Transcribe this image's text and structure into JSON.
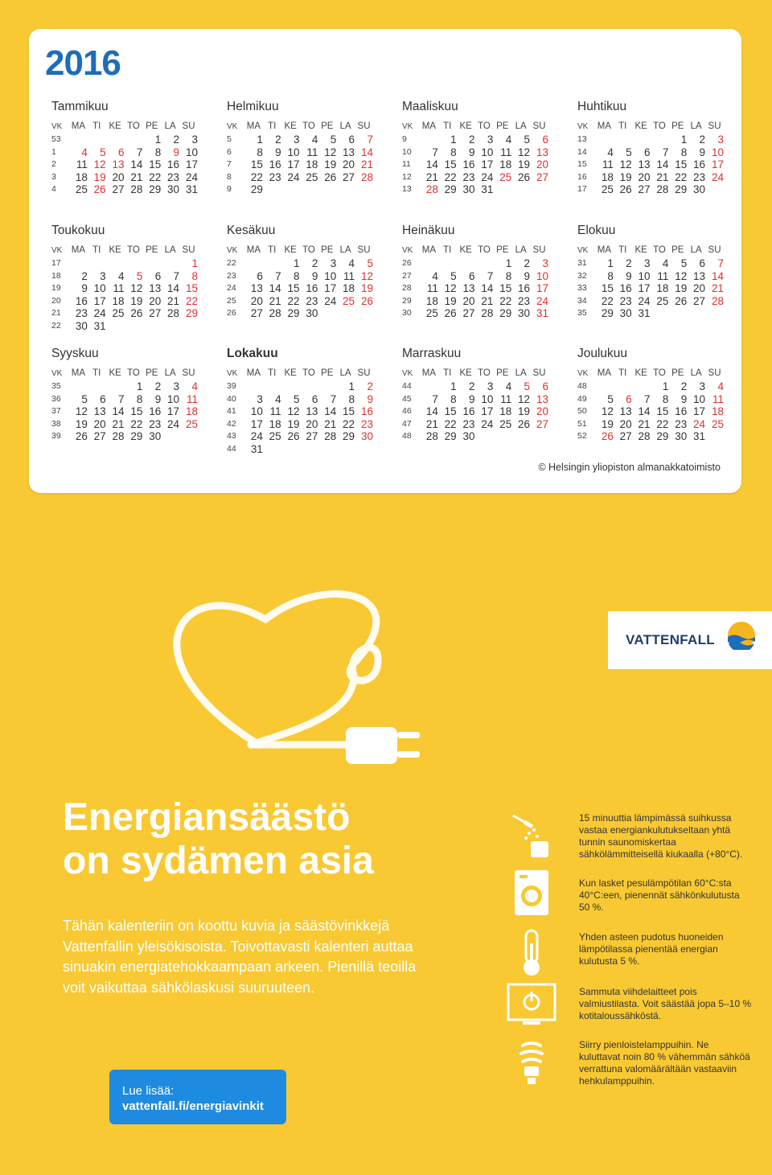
{
  "year": "2016",
  "header": [
    "VK",
    "MA",
    "TI",
    "KE",
    "TO",
    "PE",
    "LA",
    "SU"
  ],
  "months": [
    {
      "name": "Tammikuu",
      "weeks": [
        [
          "53",
          "",
          "",
          "",
          "",
          "1",
          "2",
          "3"
        ],
        [
          "1",
          "4",
          "5",
          "6",
          "7",
          "8",
          "9",
          "10"
        ],
        [
          "2",
          "11",
          "12",
          "13",
          "14",
          "15",
          "16",
          "17"
        ],
        [
          "3",
          "18",
          "19",
          "20",
          "21",
          "22",
          "23",
          "24"
        ],
        [
          "4",
          "25",
          "26",
          "27",
          "28",
          "29",
          "30",
          "31"
        ]
      ],
      "red": [
        "1-1",
        "1-6",
        "2-2",
        "3-2",
        "4-2",
        "5-2",
        "2-3",
        "1-3",
        "1-2"
      ]
    },
    {
      "name": "Helmikuu",
      "weeks": [
        [
          "5",
          "1",
          "2",
          "3",
          "4",
          "5",
          "6",
          "7"
        ],
        [
          "6",
          "8",
          "9",
          "10",
          "11",
          "12",
          "13",
          "14"
        ],
        [
          "7",
          "15",
          "16",
          "17",
          "18",
          "19",
          "20",
          "21"
        ],
        [
          "8",
          "22",
          "23",
          "24",
          "25",
          "26",
          "27",
          "28"
        ],
        [
          "9",
          "29",
          "",
          "",
          "",
          "",
          "",
          ""
        ]
      ],
      "red": [
        "0-7",
        "1-7",
        "2-7",
        "3-7"
      ]
    },
    {
      "name": "Maaliskuu",
      "weeks": [
        [
          "9",
          "",
          "1",
          "2",
          "3",
          "4",
          "5",
          "6"
        ],
        [
          "10",
          "7",
          "8",
          "9",
          "10",
          "11",
          "12",
          "13"
        ],
        [
          "11",
          "14",
          "15",
          "16",
          "17",
          "18",
          "19",
          "20"
        ],
        [
          "12",
          "21",
          "22",
          "23",
          "24",
          "25",
          "26",
          "27"
        ],
        [
          "13",
          "28",
          "29",
          "30",
          "31",
          "",
          "",
          ""
        ]
      ],
      "red": [
        "0-7",
        "1-7",
        "2-7",
        "3-7",
        "3-5",
        "4-1"
      ]
    },
    {
      "name": "Huhtikuu",
      "weeks": [
        [
          "13",
          "",
          "",
          "",
          "",
          "1",
          "2",
          "3"
        ],
        [
          "14",
          "4",
          "5",
          "6",
          "7",
          "8",
          "9",
          "10"
        ],
        [
          "15",
          "11",
          "12",
          "13",
          "14",
          "15",
          "16",
          "17"
        ],
        [
          "16",
          "18",
          "19",
          "20",
          "21",
          "22",
          "23",
          "24"
        ],
        [
          "17",
          "25",
          "26",
          "27",
          "28",
          "29",
          "30",
          ""
        ]
      ],
      "red": [
        "0-7",
        "1-7",
        "2-7",
        "3-7"
      ]
    },
    {
      "name": "Toukokuu",
      "weeks": [
        [
          "17",
          "",
          "",
          "",
          "",
          "",
          "",
          "1"
        ],
        [
          "18",
          "2",
          "3",
          "4",
          "5",
          "6",
          "7",
          "8"
        ],
        [
          "19",
          "9",
          "10",
          "11",
          "12",
          "13",
          "14",
          "15"
        ],
        [
          "20",
          "16",
          "17",
          "18",
          "19",
          "20",
          "21",
          "22"
        ],
        [
          "21",
          "23",
          "24",
          "25",
          "26",
          "27",
          "28",
          "29"
        ],
        [
          "22",
          "30",
          "31",
          "",
          "",
          "",
          "",
          ""
        ]
      ],
      "red": [
        "0-7",
        "1-7",
        "2-7",
        "3-7",
        "4-7",
        "1-4"
      ]
    },
    {
      "name": "Kesäkuu",
      "weeks": [
        [
          "22",
          "",
          "",
          "1",
          "2",
          "3",
          "4",
          "5"
        ],
        [
          "23",
          "6",
          "7",
          "8",
          "9",
          "10",
          "11",
          "12"
        ],
        [
          "24",
          "13",
          "14",
          "15",
          "16",
          "17",
          "18",
          "19"
        ],
        [
          "25",
          "20",
          "21",
          "22",
          "23",
          "24",
          "25",
          "26"
        ],
        [
          "26",
          "27",
          "28",
          "29",
          "30",
          "",
          "",
          ""
        ]
      ],
      "red": [
        "0-7",
        "1-7",
        "2-7",
        "3-7",
        "3-6"
      ]
    },
    {
      "name": "Heinäkuu",
      "weeks": [
        [
          "26",
          "",
          "",
          "",
          "",
          "1",
          "2",
          "3"
        ],
        [
          "27",
          "4",
          "5",
          "6",
          "7",
          "8",
          "9",
          "10"
        ],
        [
          "28",
          "11",
          "12",
          "13",
          "14",
          "15",
          "16",
          "17"
        ],
        [
          "29",
          "18",
          "19",
          "20",
          "21",
          "22",
          "23",
          "24"
        ],
        [
          "30",
          "25",
          "26",
          "27",
          "28",
          "29",
          "30",
          "31"
        ]
      ],
      "red": [
        "0-7",
        "1-7",
        "2-7",
        "3-7",
        "4-7"
      ]
    },
    {
      "name": "Elokuu",
      "weeks": [
        [
          "31",
          "1",
          "2",
          "3",
          "4",
          "5",
          "6",
          "7"
        ],
        [
          "32",
          "8",
          "9",
          "10",
          "11",
          "12",
          "13",
          "14"
        ],
        [
          "33",
          "15",
          "16",
          "17",
          "18",
          "19",
          "20",
          "21"
        ],
        [
          "34",
          "22",
          "23",
          "24",
          "25",
          "26",
          "27",
          "28"
        ],
        [
          "35",
          "29",
          "30",
          "31",
          "",
          "",
          "",
          ""
        ]
      ],
      "red": [
        "0-7",
        "1-7",
        "2-7",
        "3-7"
      ]
    },
    {
      "name": "Syyskuu",
      "weeks": [
        [
          "35",
          "",
          "",
          "",
          "1",
          "2",
          "3",
          "4"
        ],
        [
          "36",
          "5",
          "6",
          "7",
          "8",
          "9",
          "10",
          "11"
        ],
        [
          "37",
          "12",
          "13",
          "14",
          "15",
          "16",
          "17",
          "18"
        ],
        [
          "38",
          "19",
          "20",
          "21",
          "22",
          "23",
          "24",
          "25"
        ],
        [
          "39",
          "26",
          "27",
          "28",
          "29",
          "30",
          "",
          ""
        ]
      ],
      "red": [
        "0-7",
        "1-7",
        "2-7",
        "3-7"
      ]
    },
    {
      "name": "Lokakuu",
      "bold": true,
      "weeks": [
        [
          "39",
          "",
          "",
          "",
          "",
          "",
          "1",
          "2"
        ],
        [
          "40",
          "3",
          "4",
          "5",
          "6",
          "7",
          "8",
          "9"
        ],
        [
          "41",
          "10",
          "11",
          "12",
          "13",
          "14",
          "15",
          "16"
        ],
        [
          "42",
          "17",
          "18",
          "19",
          "20",
          "21",
          "22",
          "23"
        ],
        [
          "43",
          "24",
          "25",
          "26",
          "27",
          "28",
          "29",
          "30"
        ],
        [
          "44",
          "31",
          "",
          "",
          "",
          "",
          "",
          ""
        ]
      ],
      "red": [
        "0-7",
        "1-7",
        "2-7",
        "3-7",
        "4-7"
      ]
    },
    {
      "name": "Marraskuu",
      "weeks": [
        [
          "44",
          "",
          "1",
          "2",
          "3",
          "4",
          "5",
          "6"
        ],
        [
          "45",
          "7",
          "8",
          "9",
          "10",
          "11",
          "12",
          "13"
        ],
        [
          "46",
          "14",
          "15",
          "16",
          "17",
          "18",
          "19",
          "20"
        ],
        [
          "47",
          "21",
          "22",
          "23",
          "24",
          "25",
          "26",
          "27"
        ],
        [
          "48",
          "28",
          "29",
          "30",
          "",
          "",
          "",
          ""
        ]
      ],
      "red": [
        "0-7",
        "1-7",
        "2-7",
        "3-7",
        "0-6"
      ]
    },
    {
      "name": "Joulukuu",
      "weeks": [
        [
          "48",
          "",
          "",
          "",
          "1",
          "2",
          "3",
          "4"
        ],
        [
          "49",
          "5",
          "6",
          "7",
          "8",
          "9",
          "10",
          "11"
        ],
        [
          "50",
          "12",
          "13",
          "14",
          "15",
          "16",
          "17",
          "18"
        ],
        [
          "51",
          "19",
          "20",
          "21",
          "22",
          "23",
          "24",
          "25"
        ],
        [
          "52",
          "26",
          "27",
          "28",
          "29",
          "30",
          "31",
          ""
        ]
      ],
      "red": [
        "0-7",
        "1-7",
        "2-7",
        "3-7",
        "1-2",
        "3-6",
        "4-1"
      ]
    }
  ],
  "credit": "© Helsingin yliopiston almanakkatoimisto",
  "logo": "VATTENFALL",
  "headline_l1": "Energiansäästö",
  "headline_l2": "on sydämen asia",
  "intro": "Tähän kalenteriin on koottu kuvia ja säästövinkkejä Vattenfallin yleisökisoista. Toivottavasti kalenteri auttaa sinuakin energiatehokkaampaan arkeen. Pienillä teoilla voit vaikuttaa sähkölaskusi suuruuteen.",
  "tips": [
    {
      "icon": "shower-icon",
      "text": "15 minuuttia lämpimässä suihkussa vastaa energiankulutukseltaan yhtä tunnin saunomiskertaa sähkölämmitteisellä kiukaalla (+80°C)."
    },
    {
      "icon": "washing-machine-icon",
      "text": "Kun lasket pesulämpötilan 60°C:sta 40°C:een, pienennät sähkönkulutusta 50 %."
    },
    {
      "icon": "thermometer-icon",
      "text": "Yhden asteen pudotus huoneiden lämpötilassa pienentää energian kulutusta 5 %."
    },
    {
      "icon": "tv-power-icon",
      "text": "Sammuta viihdelaitteet pois valmiustilasta. Voit säästää jopa 5–10 % kotitaloussähköstä."
    },
    {
      "icon": "energy-bulb-icon",
      "text": "Siirry pienloistelamppuihin. Ne kuluttavat noin 80 % vähemmän sähköä verrattuna valomäärältään vastaaviin hehkulamppuihin."
    }
  ],
  "more_l1": "Lue lisää:",
  "more_l2": "vattenfall.fi/energiavinkit",
  "colors": {
    "yellow": "#f9c934",
    "blue": "#1e6db8",
    "red": "#e0302f",
    "link_bg": "#1e8be0"
  }
}
